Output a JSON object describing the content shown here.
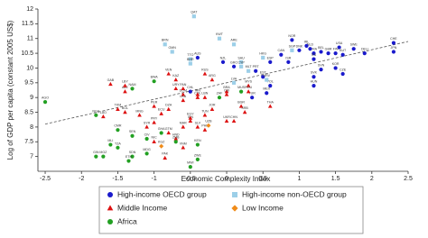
{
  "chart_data": {
    "type": "scatter",
    "x_label": "Economic Complexity Index",
    "y_label": "Log of GDP per capita (constant 2005 US$)",
    "xlim": [
      -2.6,
      2.5
    ],
    "ylim": [
      6.5,
      12
    ],
    "xticks": [
      -2.5,
      -2,
      -1.5,
      -1,
      -0.5,
      0,
      0.5,
      1,
      1.5,
      2,
      2.5
    ],
    "yticks": [
      7,
      7.5,
      8,
      8.5,
      9,
      9.5,
      10,
      10.5,
      11,
      11.5,
      12
    ],
    "trend_line": {
      "x": [
        -2.5,
        2.5
      ],
      "y": [
        8.1,
        10.9
      ],
      "color": "#555"
    },
    "series": [
      {
        "name": "High-income OECD group",
        "color": "#1a1acc",
        "marker": "circle",
        "labels": [
          "USA",
          "JPN",
          "CHE",
          "DEU",
          "SWE",
          "FIN",
          "AUT",
          "GBR",
          "FRA",
          "NOR",
          "DNK",
          "NLD",
          "BEL",
          "CAN",
          "IRL",
          "ITA",
          "ESP",
          "KOR",
          "ISR",
          "SVN",
          "CZE",
          "SVK",
          "HUN",
          "POL",
          "PRT",
          "GRC",
          "NZL",
          "AUS",
          "EST",
          "MEX",
          "TUR",
          "CHL"
        ],
        "x": [
          1.55,
          2.3,
          2.3,
          1.9,
          1.75,
          1.5,
          1.6,
          1.4,
          1.2,
          0.9,
          1.0,
          1.15,
          1.3,
          0.75,
          1.1,
          1.2,
          0.6,
          1.5,
          0.85,
          1.3,
          1.6,
          1.2,
          1.2,
          0.6,
          0.4,
          0.1,
          -0.05,
          -0.4,
          0.5,
          0.55,
          0.35,
          -0.5
        ],
        "y": [
          10.7,
          10.55,
          10.85,
          10.5,
          10.65,
          10.5,
          10.45,
          10.5,
          10.5,
          10.95,
          10.6,
          10.65,
          10.55,
          10.45,
          10.75,
          10.3,
          10.2,
          10.0,
          10.2,
          9.95,
          9.8,
          9.7,
          9.4,
          9.4,
          9.9,
          10.05,
          10.2,
          10.35,
          9.7,
          9.15,
          9.0,
          9.2
        ]
      },
      {
        "name": "High-income non-OECD group",
        "color": "#9ccfe8",
        "marker": "square",
        "labels": [
          "QAT",
          "KWT",
          "ARE",
          "SGP",
          "BRN",
          "TTO",
          "OMN",
          "SAU",
          "BHR",
          "HKG",
          "CYP",
          "MLT",
          "HRV",
          "LVA"
        ],
        "x": [
          -0.45,
          -0.1,
          0.1,
          0.9,
          -0.85,
          -0.5,
          -0.75,
          0.2,
          -0.5,
          0.5,
          0.2,
          0.3,
          0.55,
          0.1
        ],
        "y": [
          11.75,
          11.0,
          10.8,
          10.6,
          10.8,
          10.3,
          10.55,
          10.2,
          10.15,
          10.35,
          10.05,
          9.9,
          9.6,
          9.5
        ]
      },
      {
        "name": "Middle Income",
        "color": "#dd1111",
        "marker": "triangle",
        "labels": [
          "GAB",
          "AZE",
          "BOL",
          "LAO",
          "VEN",
          "KAZ",
          "RUS",
          "ARG",
          "BRA",
          "MYS",
          "THA",
          "CHN",
          "PER",
          "COL",
          "ECU",
          "PRY",
          "IDN",
          "PHL",
          "EGY",
          "UKR",
          "ROU",
          "BGR",
          "SRB",
          "JOR",
          "LBN",
          "TUN",
          "MAR",
          "GTM",
          "SLV",
          "DOM",
          "URY",
          "CRI",
          "PAN",
          "IRN",
          "DZA",
          "LBY",
          "TKM",
          "MNG",
          "NIC",
          "HND",
          "SYR",
          "LKA",
          "PAK",
          "VNM"
        ],
        "x": [
          -1.6,
          -1.4,
          -1.4,
          -1.7,
          -0.8,
          -0.7,
          -0.3,
          -0.2,
          0.0,
          0.3,
          0.6,
          0.1,
          -1.0,
          -0.4,
          -0.9,
          -1.0,
          -0.5,
          -0.3,
          -0.5,
          0.0,
          0.3,
          0.2,
          0.25,
          -0.2,
          -0.3,
          -0.3,
          -0.6,
          -0.8,
          -0.4,
          -0.6,
          -0.7,
          0.0,
          -0.6,
          -0.4,
          -0.8,
          -1.4,
          -1.5,
          -1.2,
          -1.0,
          -0.7,
          -1.1,
          -0.6,
          -0.85,
          -0.6
        ],
        "y": [
          9.45,
          9.2,
          8.5,
          8.35,
          9.8,
          9.6,
          9.8,
          9.6,
          9.2,
          9.4,
          8.7,
          8.2,
          8.7,
          9.0,
          8.45,
          8.15,
          8.2,
          7.9,
          8.3,
          8.2,
          9.2,
          8.7,
          8.5,
          8.6,
          9.0,
          8.4,
          8.0,
          7.8,
          8.0,
          9.1,
          9.3,
          9.1,
          9.3,
          9.1,
          8.6,
          9.4,
          8.6,
          8.4,
          7.5,
          7.6,
          8.0,
          8.9,
          6.95,
          7.3
        ]
      },
      {
        "name": "Low Income",
        "color": "#f08c1a",
        "marker": "diamond",
        "labels": [
          "UZB",
          "KGZ"
        ],
        "x": [
          -0.25,
          -0.9
        ],
        "y": [
          8.05,
          7.35
        ]
      },
      {
        "name": "Africa",
        "color": "#22a022",
        "marker": "circle",
        "labels": [
          "AGO",
          "NGA",
          "SEN",
          "CMR",
          "CIV",
          "TZA",
          "MLI",
          "ZMB",
          "ZWE",
          "MWI",
          "GHA",
          "MDG",
          "SDN",
          "MOZ",
          "ETH",
          "KEN",
          "BWA",
          "NAM",
          "ZAF",
          "MUS",
          "GIN"
        ],
        "x": [
          -2.5,
          -1.8,
          -1.3,
          -1.5,
          -1.1,
          -1.5,
          -1.6,
          -0.7,
          -0.4,
          -0.5,
          -0.9,
          -1.1,
          -1.3,
          -1.7,
          -1.35,
          -0.4,
          -1.0,
          -1.3,
          -0.1,
          0.2,
          -1.8
        ],
        "y": [
          8.85,
          8.4,
          7.7,
          7.9,
          7.6,
          7.3,
          7.4,
          7.5,
          6.9,
          6.65,
          7.8,
          7.1,
          7.0,
          7.0,
          6.85,
          7.4,
          9.55,
          9.3,
          9.0,
          9.2,
          7.0
        ]
      }
    ]
  }
}
